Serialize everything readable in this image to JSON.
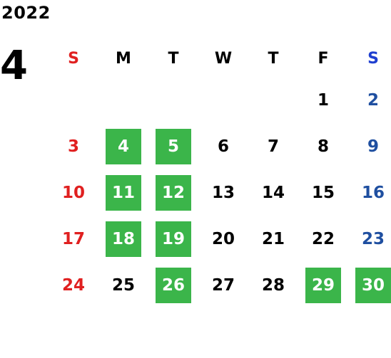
{
  "calendar": {
    "year": "2022",
    "month": "4",
    "weekdays": [
      "S",
      "M",
      "T",
      "W",
      "T",
      "F",
      "S"
    ],
    "weeks": [
      [
        {
          "day": "",
          "highlight": false
        },
        {
          "day": "",
          "highlight": false
        },
        {
          "day": "",
          "highlight": false
        },
        {
          "day": "",
          "highlight": false
        },
        {
          "day": "",
          "highlight": false
        },
        {
          "day": "1",
          "highlight": false
        },
        {
          "day": "2",
          "highlight": false
        }
      ],
      [
        {
          "day": "3",
          "highlight": false
        },
        {
          "day": "4",
          "highlight": true
        },
        {
          "day": "5",
          "highlight": true
        },
        {
          "day": "6",
          "highlight": false
        },
        {
          "day": "7",
          "highlight": false
        },
        {
          "day": "8",
          "highlight": false
        },
        {
          "day": "9",
          "highlight": false
        }
      ],
      [
        {
          "day": "10",
          "highlight": false
        },
        {
          "day": "11",
          "highlight": true
        },
        {
          "day": "12",
          "highlight": true
        },
        {
          "day": "13",
          "highlight": false
        },
        {
          "day": "14",
          "highlight": false
        },
        {
          "day": "15",
          "highlight": false
        },
        {
          "day": "16",
          "highlight": false
        }
      ],
      [
        {
          "day": "17",
          "highlight": false
        },
        {
          "day": "18",
          "highlight": true
        },
        {
          "day": "19",
          "highlight": true
        },
        {
          "day": "20",
          "highlight": false
        },
        {
          "day": "21",
          "highlight": false
        },
        {
          "day": "22",
          "highlight": false
        },
        {
          "day": "23",
          "highlight": false
        }
      ],
      [
        {
          "day": "24",
          "highlight": false
        },
        {
          "day": "25",
          "highlight": false
        },
        {
          "day": "26",
          "highlight": true
        },
        {
          "day": "27",
          "highlight": false
        },
        {
          "day": "28",
          "highlight": false
        },
        {
          "day": "29",
          "highlight": true
        },
        {
          "day": "30",
          "highlight": true
        }
      ]
    ]
  },
  "colors": {
    "highlight_bg": "#3bb54a",
    "sunday": "#e02020",
    "saturday_header": "#1f3fd0",
    "saturday": "#1f4fa0"
  }
}
